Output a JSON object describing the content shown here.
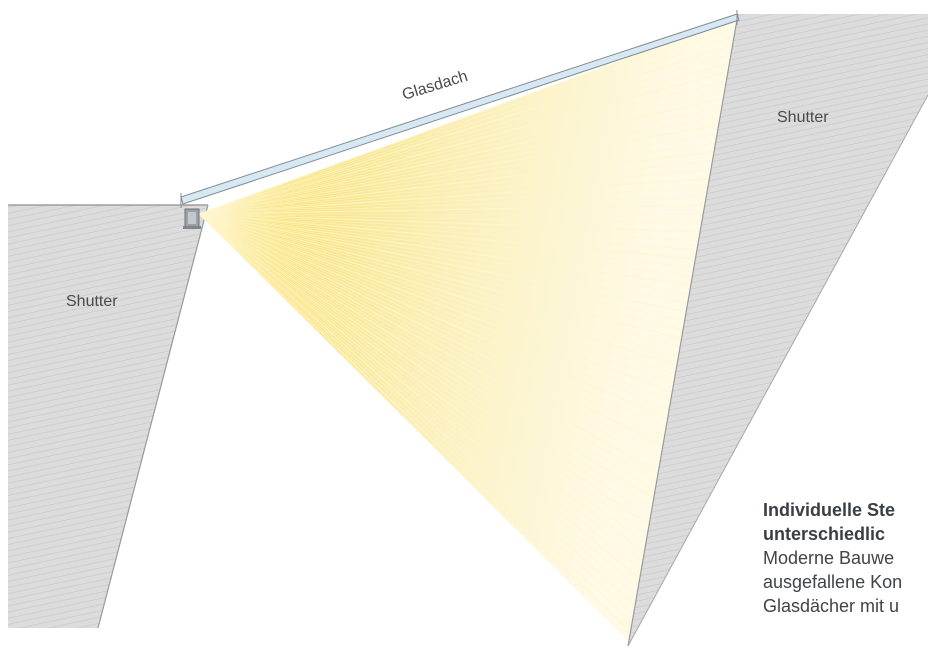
{
  "labels": {
    "glass_roof": "Glasdach",
    "shutter_left": "Shutter",
    "shutter_right": "Shutter"
  },
  "caption": {
    "heading_line_1": "Individuelle Ste",
    "heading_line_2": "unterschiedlic",
    "body_line_1": "Moderne Bauwe",
    "body_line_2": "ausgefallene Kon",
    "body_line_3": "Glasdächer mit u"
  },
  "colors": {
    "light_beam": "#f6e27a",
    "shutter": "#d9d9d9",
    "glass": "#cfe3ef",
    "glass_frame": "#7f8c95",
    "text": "#4a4a4a"
  },
  "icons": {
    "projector": "projector-icon"
  }
}
